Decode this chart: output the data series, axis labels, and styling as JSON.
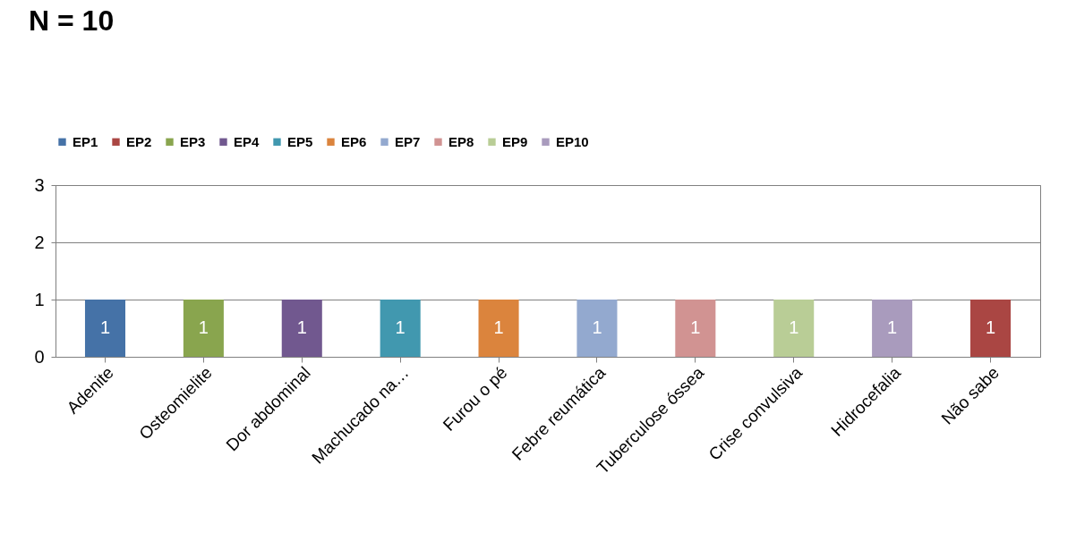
{
  "chart_data": {
    "type": "bar",
    "title": "N = 10",
    "categories": [
      "Adenite",
      "Osteomielite",
      "Dor abdominal",
      "Machucado na…",
      "Furou o pé",
      "Febre reumática",
      "Tuberculose óssea",
      "Crise convulsiva",
      "Hidrocefalia",
      "Não sabe"
    ],
    "series": [
      {
        "name": "EP1",
        "color": "#4572a7",
        "values": [
          1,
          null,
          null,
          null,
          null,
          null,
          null,
          null,
          null,
          null
        ]
      },
      {
        "name": "EP2",
        "color": "#aa4643",
        "values": [
          null,
          null,
          null,
          null,
          null,
          null,
          null,
          null,
          null,
          1
        ]
      },
      {
        "name": "EP3",
        "color": "#89a54e",
        "values": [
          null,
          1,
          null,
          null,
          null,
          null,
          null,
          null,
          null,
          null
        ]
      },
      {
        "name": "EP4",
        "color": "#71588f",
        "values": [
          null,
          null,
          1,
          null,
          null,
          null,
          null,
          null,
          null,
          null
        ]
      },
      {
        "name": "EP5",
        "color": "#4198af",
        "values": [
          null,
          null,
          null,
          1,
          null,
          null,
          null,
          null,
          null,
          null
        ]
      },
      {
        "name": "EP6",
        "color": "#db843d",
        "values": [
          null,
          null,
          null,
          null,
          1,
          null,
          null,
          null,
          null,
          null
        ]
      },
      {
        "name": "EP7",
        "color": "#93a9cf",
        "values": [
          null,
          null,
          null,
          null,
          null,
          1,
          null,
          null,
          null,
          null
        ]
      },
      {
        "name": "EP8",
        "color": "#d19392",
        "values": [
          null,
          null,
          null,
          null,
          null,
          null,
          1,
          null,
          null,
          null
        ]
      },
      {
        "name": "EP9",
        "color": "#b9cd96",
        "values": [
          null,
          null,
          null,
          null,
          null,
          null,
          null,
          1,
          null,
          null
        ]
      },
      {
        "name": "EP10",
        "color": "#a99bbd",
        "values": [
          null,
          null,
          null,
          null,
          null,
          null,
          null,
          null,
          1,
          null
        ]
      }
    ],
    "ylim": [
      0,
      3
    ],
    "yticks": [
      0,
      1,
      2,
      3
    ],
    "grid": "y",
    "legend": "top",
    "data_labels": true
  }
}
